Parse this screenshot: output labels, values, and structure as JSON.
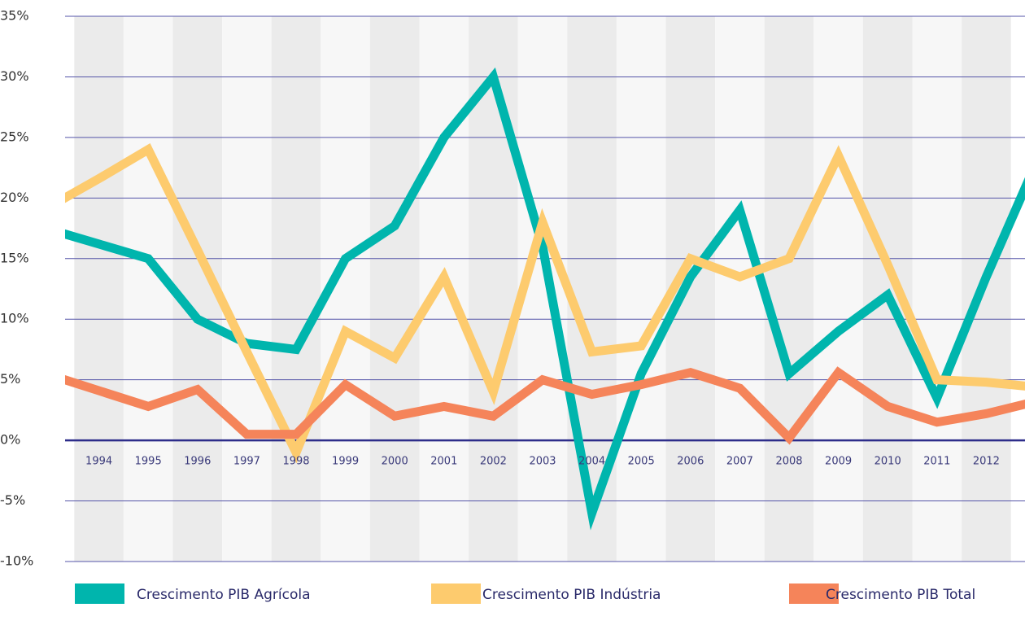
{
  "chart_data": {
    "type": "line",
    "categories": [
      null,
      "1994",
      "1995",
      "1996",
      "1997",
      "1998",
      "1999",
      "2000",
      "2001",
      "2002",
      "2003",
      "2004",
      "2005",
      "2006",
      "2007",
      "2008",
      "2009",
      "2010",
      "2011",
      "2012",
      null
    ],
    "series": [
      {
        "name": "Crescimento PIB Agrícola",
        "color": "#00b5ad",
        "values": [
          17.4,
          16.2,
          15,
          10,
          8,
          7.5,
          15,
          17.7,
          25,
          30,
          16,
          -6,
          5.5,
          13.5,
          19,
          5.5,
          9,
          12,
          3.5,
          13.5,
          22.8
        ]
      },
      {
        "name": "Crescimento PIB Indústria",
        "color": "#fdcb6e",
        "values": [
          19.3,
          21.6,
          24,
          15.7,
          7.3,
          -1,
          9,
          6.8,
          13.5,
          4,
          18,
          7.3,
          7.8,
          15,
          13.5,
          15,
          23.5,
          14.5,
          5,
          4.8,
          4.4
        ]
      },
      {
        "name": "Crescimento PIB Total",
        "color": "#f5845a",
        "values": [
          5.4,
          4.1,
          2.8,
          4.2,
          0.5,
          0.5,
          4.6,
          2,
          2.8,
          2,
          5,
          3.8,
          4.6,
          5.6,
          4.3,
          0.2,
          5.6,
          2.8,
          1.5,
          2.2,
          3.2
        ]
      }
    ],
    "ylim": [
      -10,
      35
    ],
    "yticks": [
      {
        "value": -10,
        "label": "-10%"
      },
      {
        "value": -5,
        "label": "-5%"
      },
      {
        "value": 0,
        "label": "0%"
      },
      {
        "value": 5,
        "label": "5%"
      },
      {
        "value": 10,
        "label": "10%"
      },
      {
        "value": 15,
        "label": "15%"
      },
      {
        "value": 20,
        "label": "20%"
      },
      {
        "value": 25,
        "label": "25%"
      },
      {
        "value": 30,
        "label": "30%"
      },
      {
        "value": 35,
        "label": "35%"
      }
    ],
    "grid": true,
    "legend": "bottom"
  }
}
